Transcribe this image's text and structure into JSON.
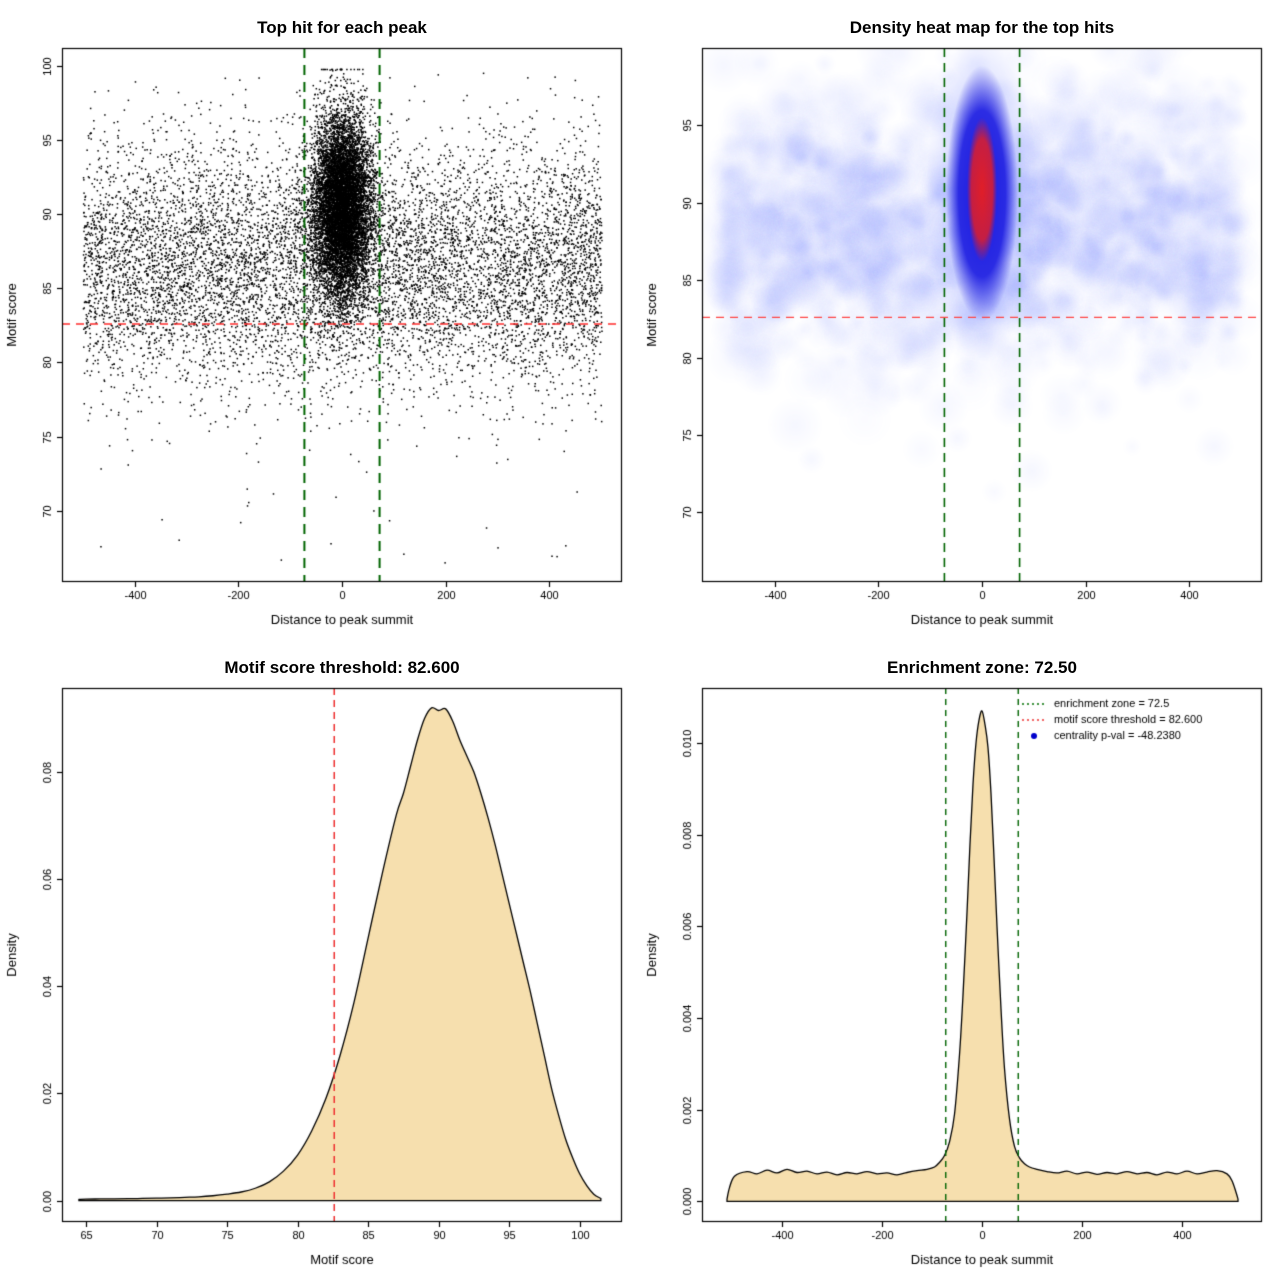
{
  "chart_data": [
    {
      "id": "top-hit-scatter",
      "type": "scatter",
      "title": "Top hit for each peak",
      "xlabel": "Distance to peak summit",
      "ylabel": "Motif score",
      "xlim": [
        -540,
        540
      ],
      "ylim": [
        65.2,
        101.2
      ],
      "xticks": [
        -400,
        -200,
        0,
        200,
        400
      ],
      "xtick_labels": [
        "-400",
        "-200",
        "0",
        "200",
        "400"
      ],
      "yticks": [
        70,
        75,
        80,
        85,
        90,
        95,
        100
      ],
      "ytick_labels": [
        "70",
        "75",
        "80",
        "85",
        "90",
        "95",
        "100"
      ],
      "point_color": "#000000",
      "motif_score_threshold": 82.6,
      "enrichment_zone": [
        -72.5,
        72.5
      ],
      "distribution": {
        "background": {
          "n": 9000,
          "x_min": -500,
          "x_max": 500,
          "y_mean": 86.6,
          "y_sd": 4.1
        },
        "cluster": {
          "n": 9500,
          "x_mean": 0,
          "x_sd": 28,
          "y_mean": 90.6,
          "y_sd": 3.1
        },
        "low_outliers": {
          "n": 35,
          "y_min": 66.5,
          "y_max": 77.5
        }
      },
      "ref_lines": [
        {
          "orient": "h",
          "value": 82.6,
          "color": "#ff2a2a",
          "dash": [
            8,
            6
          ],
          "width": 1.5
        },
        {
          "orient": "v",
          "value": -72.5,
          "color": "#006400",
          "dash": [
            10,
            7
          ],
          "width": 2
        },
        {
          "orient": "v",
          "value": 72.5,
          "color": "#006400",
          "dash": [
            10,
            7
          ],
          "width": 2
        }
      ]
    },
    {
      "id": "density-heatmap",
      "type": "heatmap",
      "title": "Density heat map for the top hits",
      "xlabel": "Distance to peak summit",
      "ylabel": "Motif score",
      "xlim": [
        -540,
        540
      ],
      "ylim": [
        65.5,
        100.0
      ],
      "xticks": [
        -400,
        -200,
        0,
        200,
        400
      ],
      "xtick_labels": [
        "-400",
        "-200",
        "0",
        "200",
        "400"
      ],
      "yticks": [
        70,
        75,
        80,
        85,
        90,
        95
      ],
      "ytick_labels": [
        "70",
        "75",
        "80",
        "85",
        "90",
        "95"
      ],
      "motif_score_threshold": 82.6,
      "enrichment_zone": [
        -72.5,
        72.5
      ],
      "haze": {
        "blob_count": 1400,
        "band_y_mean": 86.8,
        "band_y_sd": 4.3,
        "band2_y_mean": 91.5,
        "band2_y_sd": 3.6,
        "color": "#7386ff"
      },
      "hotspot": {
        "x": 0,
        "y": 90.6,
        "halo_color": "#7d8cff",
        "mid_color": "#1b1be1",
        "core_color": "#e11e28"
      },
      "ref_lines": [
        {
          "orient": "h",
          "value": 82.6,
          "color": "#ff4444",
          "dash": [
            8,
            6
          ],
          "width": 1.3
        },
        {
          "orient": "v",
          "value": -72.5,
          "color": "#006400",
          "dash": [
            9,
            6
          ],
          "width": 1.6
        },
        {
          "orient": "v",
          "value": 72.5,
          "color": "#006400",
          "dash": [
            9,
            6
          ],
          "width": 1.6
        }
      ]
    },
    {
      "id": "motif-score-density",
      "type": "density",
      "title": "Motif score threshold: 82.600",
      "xlabel": "Motif score",
      "ylabel": "Density",
      "xlim": [
        63.3,
        103
      ],
      "ylim": [
        -0.004,
        0.0957
      ],
      "xticks": [
        65,
        70,
        75,
        80,
        85,
        90,
        95,
        100
      ],
      "xtick_labels": [
        "65",
        "70",
        "75",
        "80",
        "85",
        "90",
        "95",
        "100"
      ],
      "yticks": [
        0,
        0.02,
        0.04,
        0.06,
        0.08
      ],
      "ytick_labels": [
        "0.00",
        "0.02",
        "0.04",
        "0.06",
        "0.08"
      ],
      "fill_color": "#f6dfae",
      "line_color": "#000000",
      "motif_score_threshold": 82.6,
      "curve": [
        [
          64.5,
          0.0002
        ],
        [
          65,
          0.00028
        ],
        [
          66,
          0.0003
        ],
        [
          67,
          0.00032
        ],
        [
          68,
          0.00035
        ],
        [
          69,
          0.0004
        ],
        [
          70,
          0.00045
        ],
        [
          71,
          0.0005
        ],
        [
          72,
          0.0006
        ],
        [
          73,
          0.0007
        ],
        [
          74,
          0.0009
        ],
        [
          75,
          0.0012
        ],
        [
          76,
          0.0016
        ],
        [
          77,
          0.0023
        ],
        [
          78,
          0.0035
        ],
        [
          79,
          0.0055
        ],
        [
          80,
          0.0085
        ],
        [
          81,
          0.013
        ],
        [
          82,
          0.019
        ],
        [
          83,
          0.027
        ],
        [
          84,
          0.037
        ],
        [
          85,
          0.049
        ],
        [
          86,
          0.061
        ],
        [
          87,
          0.072
        ],
        [
          87.5,
          0.076
        ],
        [
          88,
          0.081
        ],
        [
          88.5,
          0.086
        ],
        [
          89,
          0.09
        ],
        [
          89.5,
          0.092
        ],
        [
          90,
          0.0915
        ],
        [
          90.5,
          0.0918
        ],
        [
          91,
          0.0895
        ],
        [
          91.5,
          0.086
        ],
        [
          92,
          0.083
        ],
        [
          92.5,
          0.08
        ],
        [
          93,
          0.076
        ],
        [
          93.5,
          0.0715
        ],
        [
          94,
          0.0665
        ],
        [
          94.5,
          0.061
        ],
        [
          95,
          0.0555
        ],
        [
          95.5,
          0.05
        ],
        [
          96,
          0.0445
        ],
        [
          96.5,
          0.039
        ],
        [
          97,
          0.033
        ],
        [
          97.5,
          0.027
        ],
        [
          98,
          0.021
        ],
        [
          98.5,
          0.016
        ],
        [
          99,
          0.0115
        ],
        [
          99.5,
          0.008
        ],
        [
          100,
          0.005
        ],
        [
          100.5,
          0.0028
        ],
        [
          101,
          0.0012
        ],
        [
          101.5,
          0.0004
        ]
      ],
      "ref_lines": [
        {
          "orient": "v",
          "value": 82.6,
          "color": "#ee3030",
          "dash": [
            7,
            5
          ],
          "width": 1.5
        }
      ]
    },
    {
      "id": "summit-distance-density",
      "type": "density",
      "title": "Enrichment zone: 72.50",
      "xlabel": "Distance to peak summit",
      "ylabel": "Density",
      "xlim": [
        -560,
        560
      ],
      "ylim": [
        -0.00045,
        0.0112
      ],
      "xticks": [
        -400,
        -200,
        0,
        200,
        400
      ],
      "xtick_labels": [
        "-400",
        "-200",
        "0",
        "200",
        "400"
      ],
      "yticks": [
        0,
        0.002,
        0.004,
        0.006,
        0.008,
        0.01
      ],
      "ytick_labels": [
        "0.000",
        "0.002",
        "0.004",
        "0.006",
        "0.008",
        "0.010"
      ],
      "fill_color": "#f6dfae",
      "line_color": "#000000",
      "enrichment_zone": [
        -72.5,
        72.5
      ],
      "curve": [
        [
          -510,
          5e-05
        ],
        [
          -505,
          0.0003
        ],
        [
          -495,
          0.00055
        ],
        [
          -470,
          0.00065
        ],
        [
          -450,
          0.0006
        ],
        [
          -430,
          0.00068
        ],
        [
          -410,
          0.00062
        ],
        [
          -390,
          0.0007
        ],
        [
          -370,
          0.00063
        ],
        [
          -350,
          0.00066
        ],
        [
          -330,
          0.0006
        ],
        [
          -310,
          0.00064
        ],
        [
          -290,
          0.00058
        ],
        [
          -270,
          0.00063
        ],
        [
          -250,
          0.0006
        ],
        [
          -230,
          0.00065
        ],
        [
          -210,
          0.0006
        ],
        [
          -190,
          0.00062
        ],
        [
          -170,
          0.00058
        ],
        [
          -150,
          0.00063
        ],
        [
          -130,
          0.00067
        ],
        [
          -110,
          0.0007
        ],
        [
          -95,
          0.00075
        ],
        [
          -85,
          0.00085
        ],
        [
          -75,
          0.001
        ],
        [
          -65,
          0.0013
        ],
        [
          -55,
          0.0019
        ],
        [
          -45,
          0.0032
        ],
        [
          -38,
          0.0045
        ],
        [
          -30,
          0.0063
        ],
        [
          -24,
          0.0078
        ],
        [
          -18,
          0.0091
        ],
        [
          -12,
          0.01
        ],
        [
          -6,
          0.0105
        ],
        [
          0,
          0.0107
        ],
        [
          6,
          0.0104
        ],
        [
          12,
          0.0099
        ],
        [
          18,
          0.0089
        ],
        [
          24,
          0.0075
        ],
        [
          30,
          0.006
        ],
        [
          38,
          0.0042
        ],
        [
          45,
          0.0029
        ],
        [
          55,
          0.0018
        ],
        [
          65,
          0.0012
        ],
        [
          75,
          0.00095
        ],
        [
          85,
          0.00082
        ],
        [
          95,
          0.00075
        ],
        [
          110,
          0.0007
        ],
        [
          130,
          0.00065
        ],
        [
          150,
          0.00062
        ],
        [
          170,
          0.00066
        ],
        [
          190,
          0.0006
        ],
        [
          210,
          0.00064
        ],
        [
          230,
          0.00059
        ],
        [
          250,
          0.00063
        ],
        [
          270,
          0.0006
        ],
        [
          290,
          0.00065
        ],
        [
          310,
          0.0006
        ],
        [
          330,
          0.00063
        ],
        [
          350,
          0.00058
        ],
        [
          370,
          0.00064
        ],
        [
          390,
          0.0006
        ],
        [
          410,
          0.00066
        ],
        [
          430,
          0.0006
        ],
        [
          450,
          0.00064
        ],
        [
          470,
          0.00067
        ],
        [
          490,
          0.0006
        ],
        [
          500,
          0.00045
        ],
        [
          508,
          0.0002
        ],
        [
          512,
          5e-05
        ]
      ],
      "ref_lines": [
        {
          "orient": "v",
          "value": -72.5,
          "color": "#006400",
          "dash": [
            6,
            5
          ],
          "width": 1.4
        },
        {
          "orient": "v",
          "value": 72.5,
          "color": "#006400",
          "dash": [
            6,
            5
          ],
          "width": 1.4
        }
      ],
      "legend": {
        "items": [
          {
            "marker": "line",
            "color": "#007000",
            "dash": [
              2,
              3
            ],
            "label": "enrichment zone = 72.5"
          },
          {
            "marker": "line",
            "color": "#ee3030",
            "dash": [
              2,
              3
            ],
            "label": "motif score threshold = 82.600"
          },
          {
            "marker": "dot",
            "color": "#0000cc",
            "label": "centrality p-val = -48.2380"
          }
        ]
      }
    }
  ]
}
